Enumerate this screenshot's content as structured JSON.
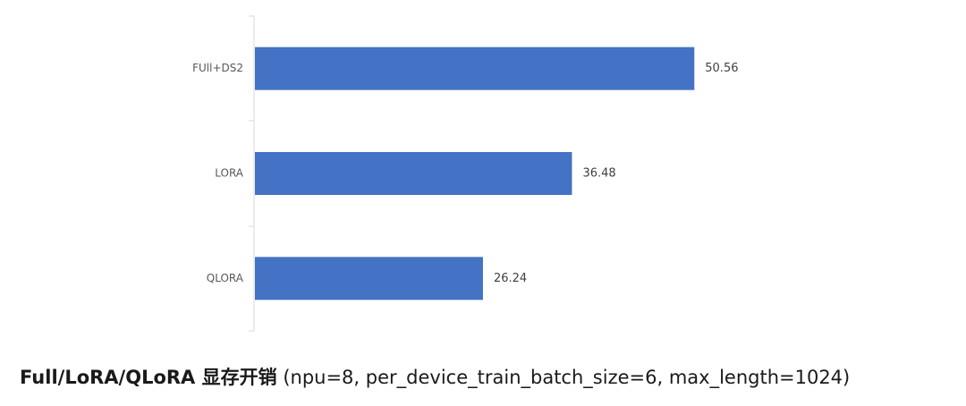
{
  "chart_data": {
    "type": "barh",
    "title": "Full/LoRA/QLoRA 显存开销",
    "subtitle": "(npu=8, per_device_train_batch_size=6, max_length=1024)",
    "categories": [
      "FUll+DS2",
      "LORA",
      "QLORA"
    ],
    "values": [
      50.56,
      36.48,
      26.24
    ],
    "color": "#4472c4",
    "xlim": [
      0,
      60
    ]
  }
}
